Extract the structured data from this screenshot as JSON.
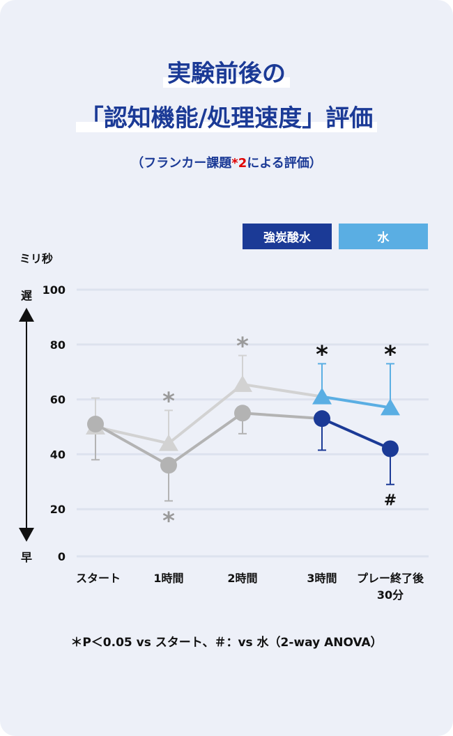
{
  "title_line1": "実験前後の",
  "title_line2": "「認知機能/処理速度」評価",
  "subtitle_pre": "（フランカー課題",
  "subtitle_star": "*2",
  "subtitle_post": "による評価）",
  "footnote": "＊P＜0.05 vs スタート、＃：vs 水（2-way ANOVA）",
  "chart_data": {
    "type": "line",
    "ylabel": "ミリ秒",
    "y_axis_top_label": "遅",
    "y_axis_bottom_label": "早",
    "ylim": [
      0,
      100
    ],
    "yticks": [
      0,
      20,
      40,
      60,
      80,
      100
    ],
    "grid": true,
    "legend_placement": "top-right",
    "categories": [
      "スタート",
      "1時間",
      "2時間",
      "3時間",
      "プレー終了後\n30分"
    ],
    "series": [
      {
        "name": "強炭酸水",
        "marker": "circle",
        "color": "#1b3a96",
        "inactive_color": "#b3b3b3",
        "values": [
          51,
          36,
          55,
          53,
          42
        ],
        "error_low": [
          38,
          23,
          47.5,
          41.5,
          29
        ],
        "annotations": [
          "",
          "*",
          "",
          "",
          "#"
        ]
      },
      {
        "name": "水",
        "marker": "triangle",
        "color": "#5aaee3",
        "inactive_color": "#d2d2d2",
        "values": [
          50,
          44,
          65.5,
          61,
          57
        ],
        "error_high": [
          60.5,
          56,
          76,
          73,
          73
        ],
        "annotations": [
          "",
          "*",
          "*",
          "*",
          "*"
        ]
      }
    ],
    "highlight_from_index": 3
  }
}
